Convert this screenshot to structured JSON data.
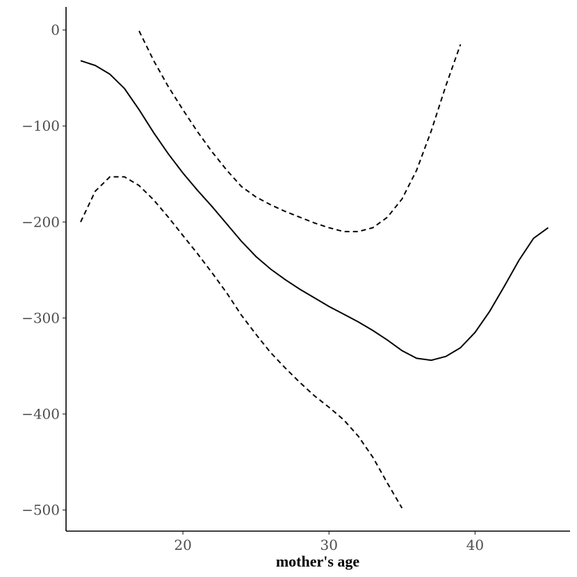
{
  "chart_data": {
    "type": "line",
    "title": "",
    "xlabel": "mother's age",
    "ylabel": "",
    "xlim": [
      12,
      46.5
    ],
    "ylim": [
      -522,
      24
    ],
    "x_ticks": [
      20,
      30,
      40
    ],
    "y_ticks": [
      0,
      -100,
      -200,
      -300,
      -400,
      -500
    ],
    "x_tick_labels": [
      "20",
      "30",
      "40"
    ],
    "y_tick_labels": [
      "0",
      "−100",
      "−200",
      "−300",
      "−400",
      "−500"
    ],
    "grid": false,
    "colors": {
      "line": "#000000",
      "tick_label": "#4d4d4d"
    },
    "series": [
      {
        "style": "solid",
        "x": [
          13,
          14,
          15,
          16,
          17,
          18,
          19,
          20,
          21,
          22,
          23,
          24,
          25,
          26,
          27,
          28,
          29,
          30,
          31,
          32,
          33,
          34,
          35,
          36,
          37,
          38,
          39,
          40,
          41,
          42,
          43,
          44,
          45
        ],
        "y": [
          -32,
          -37,
          -46,
          -61,
          -83,
          -107,
          -129,
          -149,
          -167,
          -184,
          -202,
          -220,
          -236,
          -249,
          -260,
          -270,
          -279,
          -288,
          -296,
          -304,
          -313,
          -323,
          -334,
          -342,
          -344,
          -340,
          -331,
          -315,
          -293,
          -267,
          -240,
          -217,
          -206
        ]
      },
      {
        "style": "dashed",
        "x": [
          17,
          18,
          19,
          20,
          21,
          22,
          23,
          24,
          25,
          26,
          27,
          28,
          29,
          30,
          31,
          32,
          33,
          34,
          35,
          36,
          37,
          38,
          39
        ],
        "y": [
          -1,
          -32,
          -59,
          -83,
          -106,
          -127,
          -146,
          -163,
          -174,
          -182,
          -189,
          -195,
          -201,
          -206,
          -210,
          -210,
          -206,
          -195,
          -176,
          -146,
          -105,
          -58,
          -15
        ]
      },
      {
        "style": "dashed",
        "x": [
          13,
          14,
          15,
          16,
          17,
          18,
          19,
          20,
          21,
          22,
          23,
          24,
          25,
          26,
          27,
          28,
          29,
          30,
          31,
          32,
          33,
          34,
          35
        ],
        "y": [
          -200,
          -168,
          -153,
          -153,
          -162,
          -177,
          -195,
          -214,
          -233,
          -253,
          -274,
          -297,
          -317,
          -336,
          -352,
          -367,
          -381,
          -393,
          -406,
          -423,
          -445,
          -472,
          -498
        ]
      }
    ]
  }
}
